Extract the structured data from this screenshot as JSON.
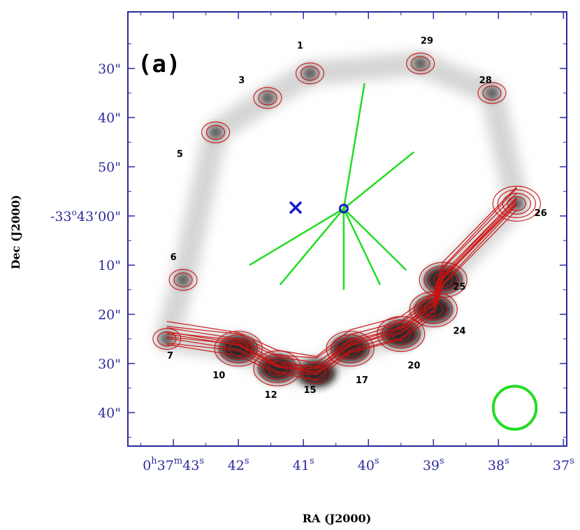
{
  "chart_data": {
    "type": "contour",
    "title": "",
    "panel_label": "(a)",
    "xlabel": "RA (J2000)",
    "ylabel": "Dec (J2000)",
    "colors": {
      "axes": "#2b2b9e",
      "contours": "#cc1111",
      "rays": "#22dd22",
      "beam": "#22dd22",
      "cross_marker": "#1a1acc",
      "circle_marker": "#1a1acc",
      "greyscale_dark": "#101010",
      "greyscale_light": "#e8e8e8"
    },
    "x_ticks": [
      {
        "sup1": "h",
        "sup2": "m",
        "sup3": "s",
        "h": "0",
        "m": "37",
        "s": "43",
        "ra_sec": 43
      },
      {
        "s": "42",
        "sup": "s",
        "ra_sec": 42
      },
      {
        "s": "41",
        "sup": "s",
        "ra_sec": 41
      },
      {
        "s": "40",
        "sup": "s",
        "ra_sec": 40
      },
      {
        "s": "39",
        "sup": "s",
        "ra_sec": 39
      },
      {
        "s": "38",
        "sup": "s",
        "ra_sec": 38
      },
      {
        "s": "37",
        "sup": "s",
        "ra_sec": 37
      }
    ],
    "y_ticks": [
      {
        "label": "30\"",
        "dec_arcsec": 30
      },
      {
        "label": "40\"",
        "dec_arcsec": 40
      },
      {
        "label": "50\"",
        "dec_arcsec": 50
      },
      {
        "label": "-33",
        "deg_sup": "o",
        "rest": "43’00\"",
        "dec_arcsec": 60
      },
      {
        "label": "10\"",
        "dec_arcsec": 70
      },
      {
        "label": "20\"",
        "dec_arcsec": 80
      },
      {
        "label": "30\"",
        "dec_arcsec": 90
      },
      {
        "label": "40\"",
        "dec_arcsec": 100
      }
    ],
    "xlim_ra_sec": [
      43.7,
      36.95
    ],
    "ylim_dec_arcsec": [
      18.5,
      106.8
    ],
    "center": {
      "ra_sec": 40.38,
      "dec_arcsec": 58.5,
      "marker": "circle"
    },
    "cross": {
      "ra_sec": 41.12,
      "dec_arcsec": 58.3,
      "marker": "x"
    },
    "rays": [
      {
        "ra_sec": 40.06,
        "dec_arcsec": 33
      },
      {
        "ra_sec": 39.3,
        "dec_arcsec": 47
      },
      {
        "ra_sec": 41.83,
        "dec_arcsec": 70
      },
      {
        "ra_sec": 41.36,
        "dec_arcsec": 74
      },
      {
        "ra_sec": 40.38,
        "dec_arcsec": 75
      },
      {
        "ra_sec": 39.82,
        "dec_arcsec": 74
      },
      {
        "ra_sec": 39.42,
        "dec_arcsec": 71
      }
    ],
    "sources": [
      {
        "id": "1",
        "ra_sec": 40.9,
        "dec_arcsec": 31,
        "label_ra": 41.05,
        "label_dec": 26
      },
      {
        "id": "3",
        "ra_sec": 41.55,
        "dec_arcsec": 36,
        "label_ra": 41.95,
        "label_dec": 33
      },
      {
        "id": "5",
        "ra_sec": 42.35,
        "dec_arcsec": 43,
        "label_ra": 42.9,
        "label_dec": 48
      },
      {
        "id": "6",
        "ra_sec": 42.85,
        "dec_arcsec": 73,
        "label_ra": 43.0,
        "label_dec": 69
      },
      {
        "id": "7",
        "ra_sec": 43.1,
        "dec_arcsec": 85,
        "label_ra": 43.05,
        "label_dec": 89
      },
      {
        "id": "10",
        "ra_sec": 42.0,
        "dec_arcsec": 87,
        "label_ra": 42.3,
        "label_dec": 93
      },
      {
        "id": "12",
        "ra_sec": 41.4,
        "dec_arcsec": 91,
        "label_ra": 41.5,
        "label_dec": 97
      },
      {
        "id": "15",
        "ra_sec": 40.8,
        "dec_arcsec": 92,
        "label_ra": 40.9,
        "label_dec": 96
      },
      {
        "id": "17",
        "ra_sec": 40.28,
        "dec_arcsec": 87,
        "label_ra": 40.1,
        "label_dec": 94
      },
      {
        "id": "20",
        "ra_sec": 39.5,
        "dec_arcsec": 84,
        "label_ra": 39.3,
        "label_dec": 91
      },
      {
        "id": "24",
        "ra_sec": 39.0,
        "dec_arcsec": 79,
        "label_ra": 38.6,
        "label_dec": 84
      },
      {
        "id": "25",
        "ra_sec": 38.85,
        "dec_arcsec": 73,
        "label_ra": 38.6,
        "label_dec": 75
      },
      {
        "id": "26",
        "ra_sec": 37.72,
        "dec_arcsec": 57.5,
        "label_ra": 37.35,
        "label_dec": 60
      },
      {
        "id": "28",
        "ra_sec": 38.1,
        "dec_arcsec": 35,
        "label_ra": 38.2,
        "label_dec": 33
      },
      {
        "id": "29",
        "ra_sec": 39.2,
        "dec_arcsec": 29,
        "label_ra": 39.1,
        "label_dec": 25
      }
    ],
    "beam": {
      "ra_sec": 37.75,
      "dec_arcsec": 99,
      "diameter_arcsec": 7
    }
  }
}
